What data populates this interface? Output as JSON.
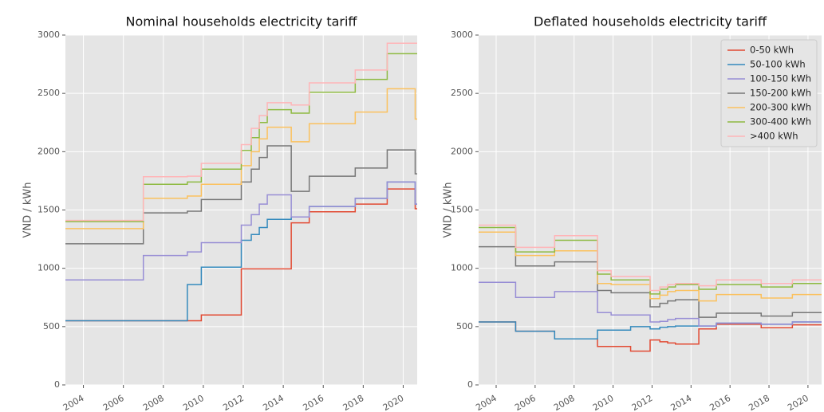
{
  "chart_data": [
    {
      "type": "line",
      "step": "post",
      "title": "Nominal households electricity tariff",
      "ylabel": "VND / kWh",
      "grid": true,
      "x": [
        2003.1,
        2007.0,
        2009.2,
        2009.9,
        2011.9,
        2012.4,
        2012.8,
        2013.2,
        2013.7,
        2014.4,
        2015.3,
        2017.6,
        2019.2,
        2020.6,
        2020.7
      ],
      "xlim": [
        2003.1,
        2020.7
      ],
      "xticks": [
        2004,
        2006,
        2008,
        2010,
        2012,
        2014,
        2016,
        2018,
        2020
      ],
      "ylim": [
        0,
        3000
      ],
      "yticks": [
        0,
        500,
        1000,
        1500,
        2000,
        2500,
        3000
      ],
      "series": [
        {
          "name": "0-50 kWh",
          "color": "#E24A33",
          "values": [
            550,
            550,
            550,
            600,
            995,
            995,
            995,
            995,
            995,
            1390,
            1485,
            1550,
            1680,
            1510,
            1510
          ]
        },
        {
          "name": "50-100 kWh",
          "color": "#348ABD",
          "values": [
            550,
            550,
            860,
            1010,
            1240,
            1290,
            1350,
            1420,
            1420,
            1440,
            1530,
            1600,
            1740,
            1550,
            1550
          ]
        },
        {
          "name": "100-150 kWh",
          "color": "#988ED5",
          "values": [
            900,
            1110,
            1140,
            1220,
            1370,
            1460,
            1550,
            1630,
            1630,
            1440,
            1530,
            1600,
            1740,
            1550,
            1550
          ]
        },
        {
          "name": "150-200 kWh",
          "color": "#777777",
          "values": [
            1210,
            1475,
            1490,
            1590,
            1740,
            1850,
            1950,
            2050,
            2050,
            1660,
            1790,
            1860,
            2015,
            1810,
            1810
          ]
        },
        {
          "name": "200-300 kWh",
          "color": "#FBC15E",
          "values": [
            1340,
            1600,
            1620,
            1720,
            1880,
            2000,
            2110,
            2210,
            2210,
            2085,
            2240,
            2340,
            2540,
            2280,
            2280
          ]
        },
        {
          "name": "300-400 kWh",
          "color": "#8EBA42",
          "values": [
            1400,
            1720,
            1740,
            1850,
            2010,
            2120,
            2250,
            2360,
            2360,
            2330,
            2510,
            2620,
            2840,
            2840,
            2840
          ]
        },
        {
          "name": ">400 kWh",
          "color": "#FFB5B8",
          "values": [
            1410,
            1785,
            1790,
            1900,
            2060,
            2200,
            2310,
            2420,
            2420,
            2400,
            2590,
            2700,
            2930,
            2930,
            2930
          ]
        }
      ]
    },
    {
      "type": "line",
      "step": "post",
      "title": "Deflated households electricity tariff",
      "ylabel": "VND / kWh",
      "grid": true,
      "legend": "upper right",
      "x": [
        2003.1,
        2005.0,
        2007.0,
        2009.2,
        2009.9,
        2010.9,
        2011.9,
        2012.4,
        2012.8,
        2013.2,
        2013.7,
        2014.4,
        2015.3,
        2017.6,
        2019.2,
        2020.7
      ],
      "xlim": [
        2003.1,
        2020.7
      ],
      "xticks": [
        2004,
        2006,
        2008,
        2010,
        2012,
        2014,
        2016,
        2018,
        2020
      ],
      "ylim": [
        0,
        3000
      ],
      "yticks": [
        0,
        500,
        1000,
        1500,
        2000,
        2500,
        3000
      ],
      "series": [
        {
          "name": "0-50 kWh",
          "color": "#E24A33",
          "values": [
            540,
            460,
            395,
            330,
            330,
            290,
            385,
            370,
            360,
            350,
            350,
            480,
            520,
            490,
            515,
            515
          ]
        },
        {
          "name": "50-100 kWh",
          "color": "#348ABD",
          "values": [
            540,
            460,
            395,
            470,
            470,
            500,
            480,
            495,
            500,
            505,
            505,
            505,
            530,
            520,
            540,
            540
          ]
        },
        {
          "name": "100-150 kWh",
          "color": "#988ED5",
          "values": [
            880,
            750,
            800,
            620,
            600,
            600,
            540,
            545,
            560,
            570,
            570,
            505,
            530,
            520,
            540,
            540
          ]
        },
        {
          "name": "150-200 kWh",
          "color": "#777777",
          "values": [
            1185,
            1020,
            1055,
            810,
            790,
            790,
            670,
            700,
            720,
            730,
            730,
            580,
            615,
            590,
            620,
            620
          ]
        },
        {
          "name": "200-300 kWh",
          "color": "#FBC15E",
          "values": [
            1310,
            1110,
            1150,
            870,
            860,
            860,
            740,
            770,
            800,
            810,
            810,
            720,
            775,
            745,
            775,
            775
          ]
        },
        {
          "name": "300-400 kWh",
          "color": "#8EBA42",
          "values": [
            1350,
            1140,
            1240,
            950,
            900,
            900,
            780,
            820,
            840,
            860,
            860,
            820,
            860,
            840,
            870,
            870
          ]
        },
        {
          "name": ">400 kWh",
          "color": "#FFB5B8",
          "values": [
            1370,
            1180,
            1280,
            980,
            930,
            930,
            810,
            840,
            860,
            870,
            870,
            850,
            900,
            870,
            900,
            900
          ]
        }
      ]
    }
  ]
}
